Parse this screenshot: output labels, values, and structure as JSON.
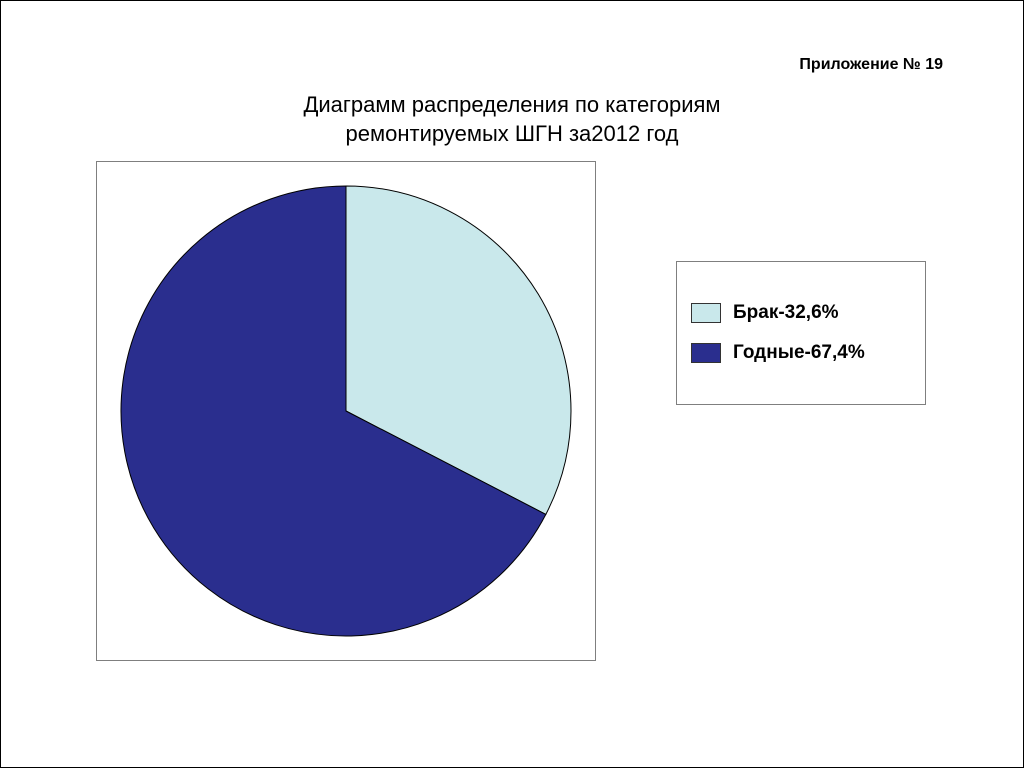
{
  "annex_label": "Приложение № 19",
  "title_line1": "Диаграмм распределения по категориям",
  "title_line2": "ремонтируемых ШГН за2012 год",
  "chart": {
    "type": "pie",
    "start_angle_deg": -90,
    "radius": 225,
    "stroke_color": "#000000",
    "stroke_width": 1,
    "background_color": "#ffffff",
    "box_border_color": "#7f7f7f",
    "slices": [
      {
        "label": "Брак-32,6%",
        "value": 32.6,
        "color": "#c9e8eb"
      },
      {
        "label": "Годные-67,4%",
        "value": 67.4,
        "color": "#2a2e8e"
      }
    ]
  },
  "legend": {
    "border_color": "#7f7f7f",
    "font_size_pt": 14,
    "font_weight": "bold"
  },
  "title_font_size_pt": 16,
  "annex_font_size_pt": 12
}
